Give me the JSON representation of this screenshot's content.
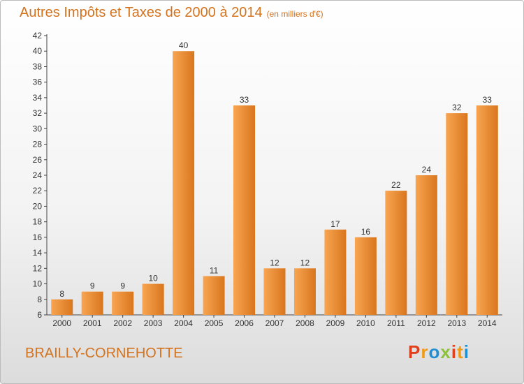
{
  "header": {
    "title": "Autres Impôts et Taxes de 2000 à 2014",
    "unit": "(en milliers d'€)"
  },
  "footer": {
    "location": "BRAILLY-CORNEHOTTE",
    "brand": "Proxiti"
  },
  "colors": {
    "accent": "#d4731e",
    "bar_light": "#f8a552",
    "bar_dark": "#d9761d",
    "brand_letters": [
      "#e2401c",
      "#f29a12",
      "#1f8fd2",
      "#8dc03c",
      "#e2401c",
      "#f29a12",
      "#1f8fd2"
    ]
  },
  "chart_data": {
    "type": "bar",
    "title": "Autres Impôts et Taxes de 2000 à 2014",
    "categories": [
      "2000",
      "2001",
      "2002",
      "2003",
      "2004",
      "2005",
      "2006",
      "2007",
      "2008",
      "2009",
      "2010",
      "2011",
      "2012",
      "2013",
      "2014"
    ],
    "values": [
      8,
      9,
      9,
      10,
      40,
      11,
      33,
      12,
      12,
      17,
      16,
      22,
      24,
      32,
      33
    ],
    "ylim": [
      6,
      42
    ],
    "yticks": [
      6,
      8,
      10,
      12,
      14,
      16,
      18,
      20,
      22,
      24,
      26,
      28,
      30,
      32,
      34,
      36,
      38,
      40,
      42
    ],
    "grid": false,
    "legend": "none"
  }
}
